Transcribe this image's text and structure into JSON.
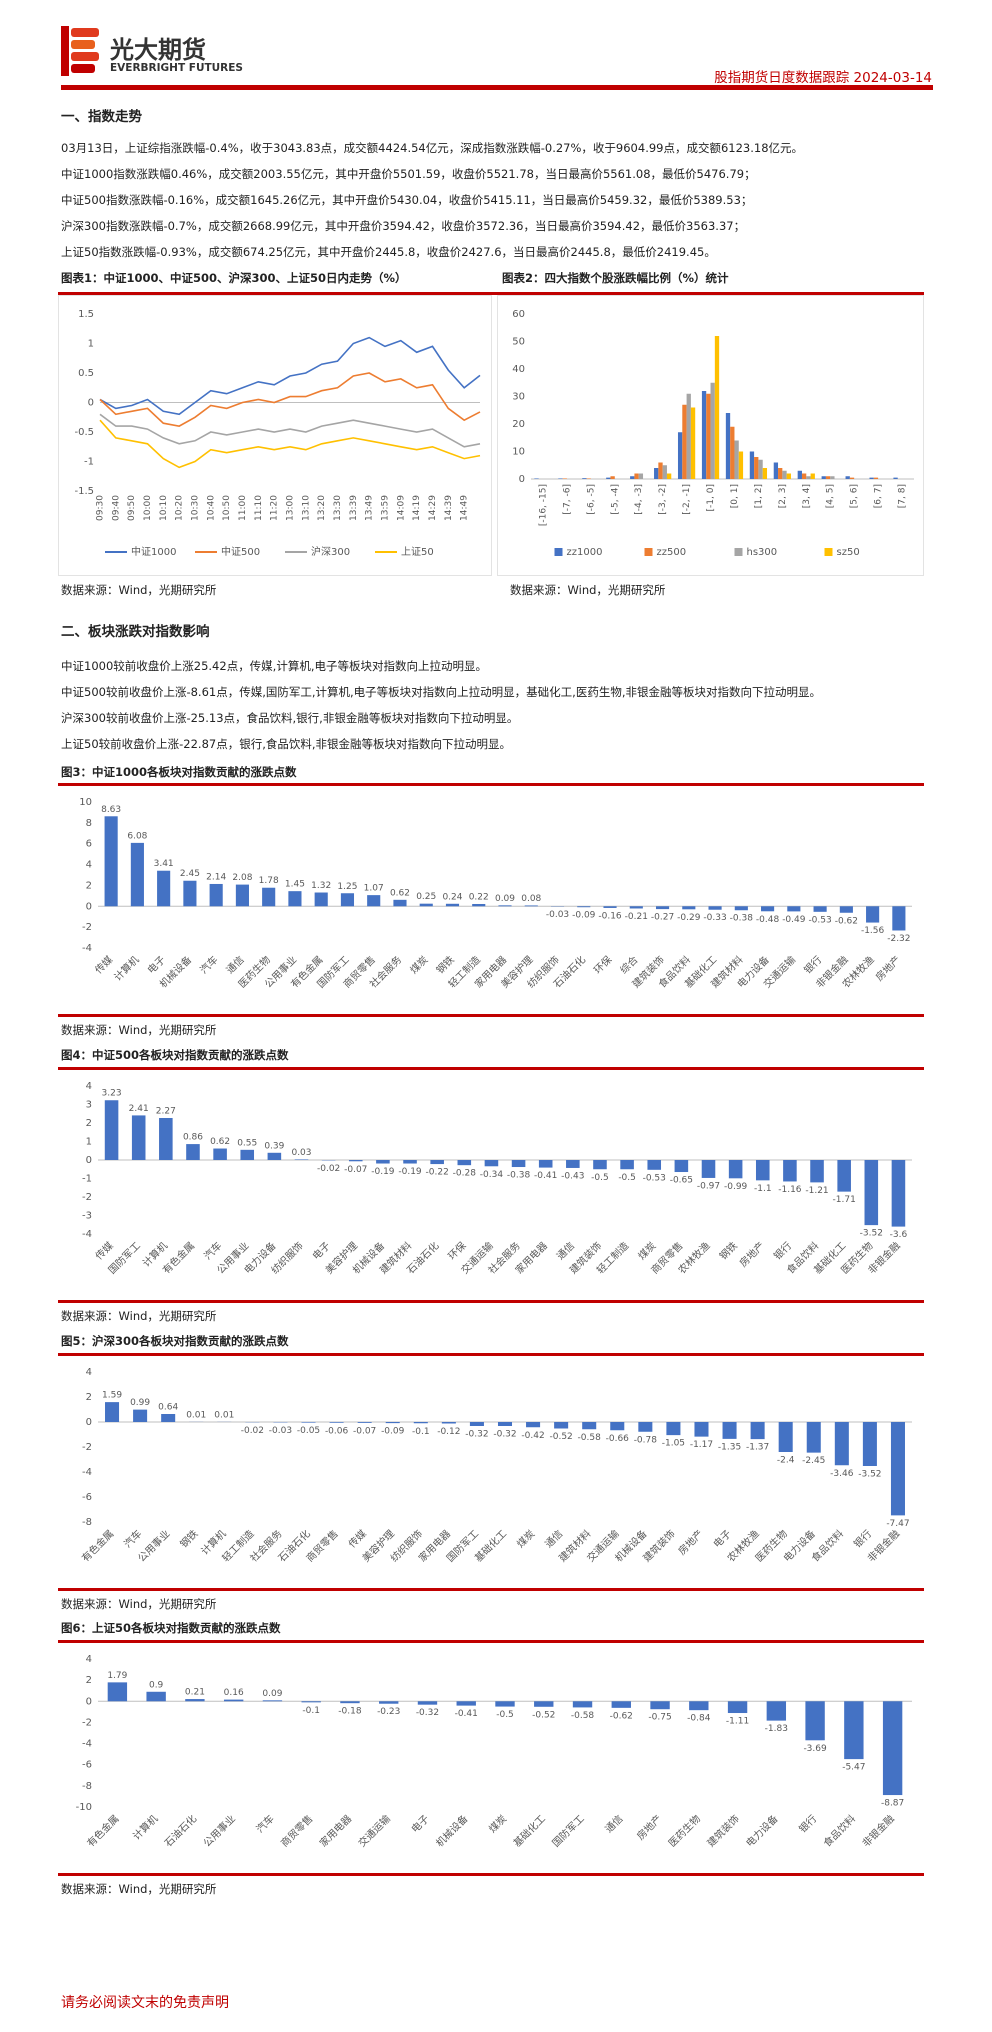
{
  "header": {
    "logo": "光大期货",
    "logo_en": "EVERBRIGHT FUTURES",
    "title": "股指期货日度数据跟踪 2024-03-14"
  },
  "section1": {
    "heading": "一、指数走势",
    "paragraphs": [
      "03月13日，上证综指涨跌幅-0.4%，收于3043.83点，成交额4424.54亿元，深成指数涨跌幅-0.27%，收于9604.99点，成交额6123.18亿元。",
      "中证1000指数涨跌幅0.46%，成交额2003.55亿元，其中开盘价5501.59，收盘价5521.78，当日最高价5561.08，最低价5476.79；",
      "中证500指数涨跌幅-0.16%，成交额1645.26亿元，其中开盘价5430.04，收盘价5415.11，当日最高价5459.32，最低价5389.53；",
      "沪深300指数涨跌幅-0.7%，成交额2668.99亿元，其中开盘价3594.42，收盘价3572.36，当日最高价3594.42，最低价3563.37；",
      "上证50指数涨跌幅-0.93%，成交额674.25亿元，其中开盘价2445.8，收盘价2427.6，当日最高价2445.8，最低价2419.45。"
    ]
  },
  "section2": {
    "heading": "二、板块涨跌对指数影响",
    "paragraphs": [
      "中证1000较前收盘价上涨25.42点，传媒,计算机,电子等板块对指数向上拉动明显。",
      "中证500较前收盘价上涨-8.61点，传媒,国防军工,计算机,电子等板块对指数向上拉动明显，基础化工,医药生物,非银金融等板块对指数向下拉动明显。",
      "沪深300较前收盘价上涨-25.13点，食品饮料,银行,非银金融等板块对指数向下拉动明显。",
      "上证50较前收盘价上涨-22.87点，银行,食品饮料,非银金融等板块对指数向下拉动明显。"
    ]
  },
  "chart_data": [
    {
      "type": "line",
      "title": "图表1：中证1000、中证500、沪深300、上证50日内走势（%）",
      "source": "数据来源：Wind，光期研究所",
      "categories": [
        "09:30",
        "09:40",
        "09:50",
        "10:00",
        "10:10",
        "10:20",
        "10:30",
        "10:40",
        "10:50",
        "11:00",
        "11:10",
        "11:20",
        "13:00",
        "13:10",
        "13:20",
        "13:30",
        "13:39",
        "13:49",
        "13:59",
        "14:09",
        "14:19",
        "14:29",
        "14:39",
        "14:49",
        null
      ],
      "ylim": [
        -1.5,
        1.5
      ],
      "yticks": [
        -1.5,
        -1,
        -0.5,
        0,
        0.5,
        1,
        1.5
      ],
      "grid": false,
      "legend": "bottom",
      "series": [
        {
          "name": "中证1000",
          "color": "#4472c4",
          "values": [
            0.05,
            -0.1,
            -0.05,
            0.05,
            -0.15,
            -0.2,
            0.0,
            0.2,
            0.15,
            0.25,
            0.35,
            0.3,
            0.45,
            0.5,
            0.65,
            0.7,
            1.0,
            1.1,
            0.95,
            1.05,
            0.85,
            0.95,
            0.55,
            0.25,
            0.46
          ]
        },
        {
          "name": "中证500",
          "color": "#ed7d31",
          "values": [
            0.05,
            -0.2,
            -0.15,
            -0.1,
            -0.35,
            -0.4,
            -0.25,
            -0.05,
            -0.1,
            0.0,
            0.05,
            0.0,
            0.1,
            0.1,
            0.2,
            0.25,
            0.45,
            0.5,
            0.35,
            0.4,
            0.25,
            0.3,
            -0.1,
            -0.3,
            -0.16
          ]
        },
        {
          "name": "沪深300",
          "color": "#a5a5a5",
          "values": [
            -0.2,
            -0.4,
            -0.4,
            -0.45,
            -0.6,
            -0.7,
            -0.65,
            -0.5,
            -0.55,
            -0.5,
            -0.45,
            -0.5,
            -0.45,
            -0.5,
            -0.4,
            -0.35,
            -0.3,
            -0.35,
            -0.4,
            -0.45,
            -0.5,
            -0.45,
            -0.6,
            -0.75,
            -0.7
          ]
        },
        {
          "name": "上证50",
          "color": "#ffc000",
          "values": [
            -0.3,
            -0.6,
            -0.65,
            -0.7,
            -0.95,
            -1.1,
            -1.0,
            -0.8,
            -0.85,
            -0.8,
            -0.75,
            -0.8,
            -0.75,
            -0.8,
            -0.7,
            -0.65,
            -0.6,
            -0.65,
            -0.7,
            -0.75,
            -0.8,
            -0.75,
            -0.85,
            -0.95,
            -0.9
          ]
        }
      ]
    },
    {
      "type": "bar",
      "title": "图表2：四大指数个股涨跌幅比例（%）统计",
      "source": "数据来源：Wind，光期研究所",
      "categories": [
        "[-16, -15]",
        "[-7, -6]",
        "[-6, -5]",
        "[-5, -4]",
        "[-4, -3]",
        "[-3, -2]",
        "[-2, -1]",
        "[-1, 0]",
        "[0, 1]",
        "[1, 2]",
        "[2, 3]",
        "[3, 4]",
        "[4, 5]",
        "[5, 6]",
        "[6, 7]",
        "[7, 8]"
      ],
      "ylim": [
        0,
        60
      ],
      "yticks": [
        0,
        10,
        20,
        30,
        40,
        50,
        60
      ],
      "grid": false,
      "legend": "bottom",
      "series": [
        {
          "name": "zz1000",
          "color": "#4472c4",
          "values": [
            0.2,
            0.2,
            0.3,
            0.5,
            1,
            4,
            17,
            32,
            24,
            10,
            6,
            3,
            1,
            1,
            0.5,
            0.5
          ]
        },
        {
          "name": "zz500",
          "color": "#ed7d31",
          "values": [
            0,
            0.2,
            0.2,
            1,
            2,
            6,
            27,
            31,
            19,
            8,
            4,
            2,
            1,
            0.5,
            0.5,
            0
          ]
        },
        {
          "name": "hs300",
          "color": "#a5a5a5",
          "values": [
            0,
            0,
            0,
            0,
            2,
            5,
            31,
            35,
            14,
            7,
            3,
            1,
            1,
            0,
            0,
            0
          ]
        },
        {
          "name": "sz50",
          "color": "#ffc000",
          "values": [
            0,
            0,
            0,
            0,
            0,
            2,
            26,
            52,
            10,
            4,
            2,
            2,
            0,
            0,
            0,
            0
          ]
        }
      ]
    },
    {
      "type": "bar",
      "title": "图3：中证1000各板块对指数贡献的涨跌点数",
      "source": "数据来源：Wind，光期研究所",
      "color": "#4472c4",
      "categories": [
        "传媒",
        "计算机",
        "电子",
        "机械设备",
        "汽车",
        "通信",
        "医药生物",
        "公用事业",
        "有色金属",
        "国防军工",
        "商贸零售",
        "社会服务",
        "煤炭",
        "钢铁",
        "轻工制造",
        "家用电器",
        "美容护理",
        "纺织服饰",
        "石油石化",
        "环保",
        "综合",
        "建筑装饰",
        "食品饮料",
        "基础化工",
        "建筑材料",
        "电力设备",
        "交通运输",
        "银行",
        "非银金融",
        "农林牧渔",
        "房地产"
      ],
      "values": [
        8.63,
        6.08,
        3.41,
        2.45,
        2.14,
        2.08,
        1.78,
        1.45,
        1.32,
        1.25,
        1.07,
        0.62,
        0.25,
        0.24,
        0.22,
        0.09,
        0.08,
        -0.03,
        -0.09,
        -0.16,
        -0.21,
        -0.27,
        -0.29,
        -0.33,
        -0.38,
        -0.48,
        -0.49,
        -0.53,
        -0.62,
        -1.56,
        -2.32
      ],
      "ylim": [
        -4,
        10
      ],
      "yticks": [
        -4,
        -2,
        0,
        2,
        4,
        6,
        8,
        10
      ],
      "grid": false
    },
    {
      "type": "bar",
      "title": "图4：中证500各板块对指数贡献的涨跌点数",
      "source": "数据来源：Wind，光期研究所",
      "color": "#4472c4",
      "categories": [
        "传媒",
        "国防军工",
        "计算机",
        "有色金属",
        "汽车",
        "公用事业",
        "电力设备",
        "纺织服饰",
        "电子",
        "美容护理",
        "机械设备",
        "建筑材料",
        "石油石化",
        "环保",
        "交通运输",
        "社会服务",
        "家用电器",
        "通信",
        "建筑装饰",
        "轻工制造",
        "煤炭",
        "商贸零售",
        "农林牧渔",
        "钢铁",
        "房地产",
        "银行",
        "食品饮料",
        "基础化工",
        "医药生物",
        "非银金融"
      ],
      "values": [
        3.23,
        2.41,
        2.27,
        0.86,
        0.62,
        0.55,
        0.39,
        0.03,
        -0.02,
        -0.07,
        -0.19,
        -0.19,
        -0.22,
        -0.28,
        -0.34,
        -0.38,
        -0.41,
        -0.43,
        -0.5,
        -0.5,
        -0.53,
        -0.65,
        -0.97,
        -0.99,
        -1.1,
        -1.16,
        -1.21,
        -1.71,
        -3.52,
        -3.6
      ],
      "ylim": [
        -4,
        4
      ],
      "yticks": [
        -4,
        -3,
        -2,
        -1,
        0,
        1,
        2,
        3,
        4
      ],
      "grid": false
    },
    {
      "type": "bar",
      "title": "图5：沪深300各板块对指数贡献的涨跌点数",
      "source": "数据来源：Wind，光期研究所",
      "color": "#4472c4",
      "categories": [
        "有色金属",
        "汽车",
        "公用事业",
        "钢铁",
        "计算机",
        "轻工制造",
        "社会服务",
        "石油石化",
        "商贸零售",
        "传媒",
        "美容护理",
        "纺织服饰",
        "家用电器",
        "国防军工",
        "基础化工",
        "煤炭",
        "通信",
        "建筑材料",
        "交通运输",
        "机械设备",
        "建筑装饰",
        "房地产",
        "电子",
        "农林牧渔",
        "医药生物",
        "电力设备",
        "食品饮料",
        "银行",
        "非银金融"
      ],
      "values": [
        1.59,
        0.99,
        0.64,
        0.01,
        0.01,
        -0.02,
        -0.03,
        -0.05,
        -0.06,
        -0.07,
        -0.09,
        -0.1,
        -0.12,
        -0.32,
        -0.32,
        -0.42,
        -0.52,
        -0.58,
        -0.66,
        -0.78,
        -1.05,
        -1.17,
        -1.35,
        -1.37,
        -2.4,
        -2.45,
        -3.46,
        -3.52,
        -7.47
      ],
      "ylim": [
        -8,
        4
      ],
      "yticks": [
        -8,
        -6,
        -4,
        -2,
        0,
        2,
        4
      ],
      "grid": false
    },
    {
      "type": "bar",
      "title": "图6：上证50各板块对指数贡献的涨跌点数",
      "source": "数据来源：Wind，光期研究所",
      "color": "#4472c4",
      "categories": [
        "有色金属",
        "计算机",
        "石油石化",
        "公用事业",
        "汽车",
        "商贸零售",
        "家用电器",
        "交通运输",
        "电子",
        "机械设备",
        "煤炭",
        "基础化工",
        "国防军工",
        "通信",
        "房地产",
        "医药生物",
        "建筑装饰",
        "电力设备",
        "银行",
        "食品饮料",
        "非银金融"
      ],
      "values": [
        1.79,
        0.9,
        0.21,
        0.16,
        0.09,
        -0.1,
        -0.18,
        -0.23,
        -0.32,
        -0.41,
        -0.5,
        -0.52,
        -0.58,
        -0.62,
        -0.75,
        -0.84,
        -1.11,
        -1.83,
        -3.69,
        -5.47,
        -8.87
      ],
      "ylim": [
        -10,
        4
      ],
      "yticks": [
        -10,
        -8,
        -6,
        -4,
        -2,
        0,
        2,
        4
      ],
      "grid": false
    }
  ],
  "footer": "请务必阅读文末的免责声明"
}
